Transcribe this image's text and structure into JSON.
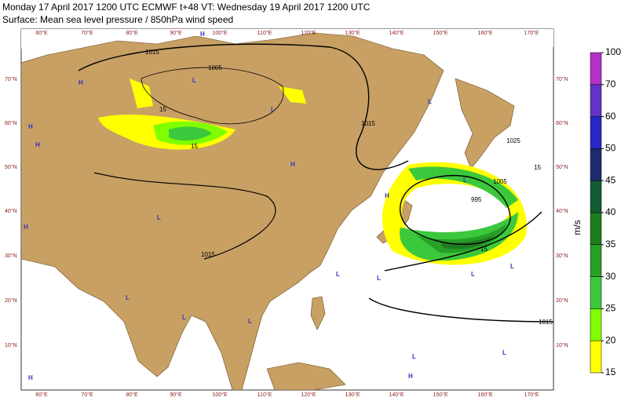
{
  "header": {
    "line1": "Monday 17 April 2017 1200 UTC  ECMWF  t+48  VT: Wednesday 19 April 2017 1200 UTC",
    "line2": "Surface: Mean sea level pressure / 850hPa wind speed"
  },
  "map": {
    "lon_labels": [
      "60°E",
      "70°E",
      "80°E",
      "90°E",
      "100°E",
      "110°E",
      "120°E",
      "130°E",
      "140°E",
      "150°E",
      "160°E",
      "170°E"
    ],
    "lat_labels": [
      "70°N",
      "60°N",
      "50°N",
      "40°N",
      "30°N",
      "20°N",
      "10°N"
    ],
    "isobar_labels": [
      "1015",
      "1005",
      "15",
      "15",
      "1015",
      "1025",
      "1005",
      "995",
      "1015",
      "1015",
      "15",
      "15"
    ],
    "high_label": "H",
    "low_label": "L"
  },
  "colorbar": {
    "unit": "m/s",
    "ticks": [
      15,
      20,
      25,
      30,
      35,
      40,
      45,
      50,
      60,
      70,
      100
    ],
    "colors": [
      "#ffff00",
      "#7fff00",
      "#3cc83c",
      "#28a028",
      "#1e7d1e",
      "#145a32",
      "#1c2c6e",
      "#2828c8",
      "#6432c8",
      "#b432c8"
    ]
  }
}
